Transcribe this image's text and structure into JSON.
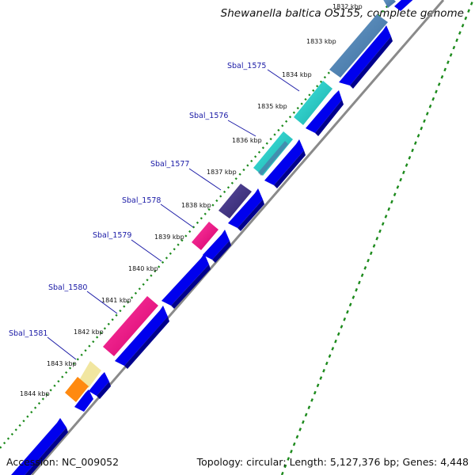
{
  "header": {
    "title": "Shewanella baltica OS155, complete genome"
  },
  "footer": {
    "accession": "Accession: NC_009052",
    "summary": "Topology: circular; Length: 5,127,376 bp; Genes: 4,448"
  },
  "kbp_ticks": [
    "1832 kbp",
    "1833 kbp",
    "1834 kbp",
    "1835 kbp",
    "1836 kbp",
    "1837 kbp",
    "1838 kbp",
    "1839 kbp",
    "1840 kbp",
    "1841 kbp",
    "1842 kbp",
    "1843 kbp",
    "1844 kbp"
  ],
  "gene_labels": [
    "Sbal_1575",
    "Sbal_1576",
    "Sbal_1577",
    "Sbal_1578",
    "Sbal_1579",
    "Sbal_1580",
    "Sbal_1581"
  ],
  "colors": {
    "cds": "#0000ee",
    "gc_marks": "#1c8a1c",
    "label": "#1a1aa6",
    "backbone": "#8a8a8a"
  }
}
